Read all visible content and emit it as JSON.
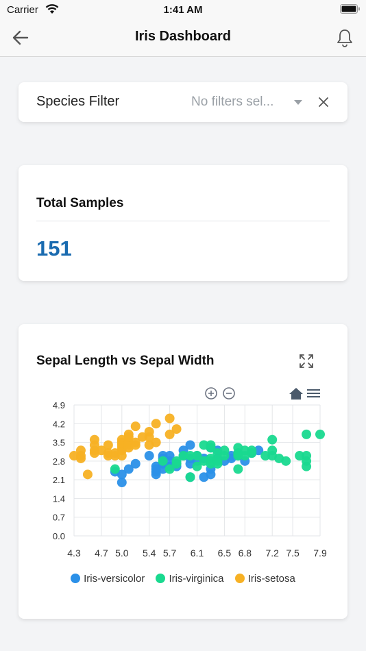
{
  "status_bar": {
    "carrier": "Carrier",
    "time": "1:41 AM"
  },
  "nav": {
    "title": "Iris Dashboard",
    "back_icon": "arrow-left-icon",
    "bell_icon": "bell-icon"
  },
  "filter": {
    "label": "Species Filter",
    "placeholder": "No filters sel...",
    "caret_icon": "caret-down-icon",
    "clear_icon": "close-icon"
  },
  "samples": {
    "title": "Total Samples",
    "value": "151"
  },
  "chart_card": {
    "title": "Sepal Length vs Sepal Width"
  },
  "colors": {
    "versicolor": "#2b90e8",
    "virginica": "#19d98f",
    "setosa": "#f7b124",
    "accent": "#1a6bb0"
  },
  "chart_data": {
    "type": "scatter",
    "title": "Sepal Length vs Sepal Width",
    "xlabel": "",
    "ylabel": "",
    "xlim": [
      4.3,
      7.9
    ],
    "ylim": [
      0.0,
      4.9
    ],
    "x_ticks": [
      "4.3",
      "4.7",
      "5.0",
      "5.4",
      "5.7",
      "6.1",
      "6.5",
      "6.8",
      "7.2",
      "7.5",
      "7.9"
    ],
    "y_ticks": [
      "0.0",
      "0.7",
      "1.4",
      "2.1",
      "2.8",
      "3.5",
      "4.2",
      "4.9"
    ],
    "grid": true,
    "legend_position": "bottom",
    "series": [
      {
        "name": "Iris-versicolor",
        "color": "#2b90e8",
        "points": [
          [
            4.9,
            2.4
          ],
          [
            5.0,
            2.0
          ],
          [
            5.0,
            2.3
          ],
          [
            5.1,
            2.5
          ],
          [
            5.2,
            2.7
          ],
          [
            5.4,
            3.0
          ],
          [
            5.5,
            2.3
          ],
          [
            5.5,
            2.4
          ],
          [
            5.5,
            2.5
          ],
          [
            5.5,
            2.6
          ],
          [
            5.6,
            2.5
          ],
          [
            5.6,
            2.7
          ],
          [
            5.6,
            2.9
          ],
          [
            5.6,
            3.0
          ],
          [
            5.7,
            2.6
          ],
          [
            5.7,
            2.8
          ],
          [
            5.7,
            3.0
          ],
          [
            5.8,
            2.6
          ],
          [
            5.8,
            2.7
          ],
          [
            5.9,
            3.0
          ],
          [
            5.9,
            3.2
          ],
          [
            6.0,
            2.2
          ],
          [
            6.0,
            2.7
          ],
          [
            6.0,
            2.9
          ],
          [
            6.0,
            3.4
          ],
          [
            6.1,
            2.8
          ],
          [
            6.1,
            3.0
          ],
          [
            6.2,
            2.2
          ],
          [
            6.2,
            2.9
          ],
          [
            6.3,
            2.3
          ],
          [
            6.3,
            2.5
          ],
          [
            6.3,
            3.3
          ],
          [
            6.4,
            2.9
          ],
          [
            6.4,
            3.2
          ],
          [
            6.5,
            2.8
          ],
          [
            6.6,
            2.9
          ],
          [
            6.6,
            3.0
          ],
          [
            6.7,
            3.0
          ],
          [
            6.7,
            3.1
          ],
          [
            6.8,
            2.8
          ],
          [
            6.9,
            3.1
          ],
          [
            7.0,
            3.2
          ]
        ]
      },
      {
        "name": "Iris-virginica",
        "color": "#19d98f",
        "points": [
          [
            4.9,
            2.5
          ],
          [
            5.6,
            2.8
          ],
          [
            5.7,
            2.5
          ],
          [
            5.8,
            2.7
          ],
          [
            5.8,
            2.8
          ],
          [
            5.9,
            3.0
          ],
          [
            6.0,
            2.2
          ],
          [
            6.0,
            3.0
          ],
          [
            6.1,
            2.6
          ],
          [
            6.1,
            3.0
          ],
          [
            6.2,
            2.8
          ],
          [
            6.2,
            3.4
          ],
          [
            6.3,
            2.7
          ],
          [
            6.3,
            2.8
          ],
          [
            6.3,
            2.9
          ],
          [
            6.3,
            3.3
          ],
          [
            6.3,
            3.4
          ],
          [
            6.4,
            2.7
          ],
          [
            6.4,
            2.8
          ],
          [
            6.4,
            3.1
          ],
          [
            6.5,
            3.0
          ],
          [
            6.5,
            3.2
          ],
          [
            6.7,
            2.5
          ],
          [
            6.7,
            3.0
          ],
          [
            6.7,
            3.1
          ],
          [
            6.7,
            3.3
          ],
          [
            6.8,
            3.0
          ],
          [
            6.8,
            3.2
          ],
          [
            6.9,
            3.1
          ],
          [
            6.9,
            3.2
          ],
          [
            7.1,
            3.0
          ],
          [
            7.2,
            3.0
          ],
          [
            7.2,
            3.2
          ],
          [
            7.2,
            3.6
          ],
          [
            7.3,
            2.9
          ],
          [
            7.4,
            2.8
          ],
          [
            7.6,
            3.0
          ],
          [
            7.7,
            2.6
          ],
          [
            7.7,
            2.8
          ],
          [
            7.7,
            3.0
          ],
          [
            7.7,
            3.8
          ],
          [
            7.9,
            3.8
          ]
        ]
      },
      {
        "name": "Iris-setosa",
        "color": "#f7b124",
        "points": [
          [
            4.3,
            3.0
          ],
          [
            4.4,
            2.9
          ],
          [
            4.4,
            3.0
          ],
          [
            4.4,
            3.2
          ],
          [
            4.5,
            2.3
          ],
          [
            4.6,
            3.1
          ],
          [
            4.6,
            3.2
          ],
          [
            4.6,
            3.4
          ],
          [
            4.6,
            3.6
          ],
          [
            4.7,
            3.2
          ],
          [
            4.8,
            3.0
          ],
          [
            4.8,
            3.1
          ],
          [
            4.8,
            3.4
          ],
          [
            4.9,
            3.0
          ],
          [
            4.9,
            3.1
          ],
          [
            5.0,
            3.0
          ],
          [
            5.0,
            3.2
          ],
          [
            5.0,
            3.3
          ],
          [
            5.0,
            3.4
          ],
          [
            5.0,
            3.5
          ],
          [
            5.0,
            3.6
          ],
          [
            5.1,
            3.3
          ],
          [
            5.1,
            3.4
          ],
          [
            5.1,
            3.5
          ],
          [
            5.1,
            3.7
          ],
          [
            5.1,
            3.8
          ],
          [
            5.2,
            3.4
          ],
          [
            5.2,
            3.5
          ],
          [
            5.2,
            4.1
          ],
          [
            5.3,
            3.7
          ],
          [
            5.4,
            3.4
          ],
          [
            5.4,
            3.7
          ],
          [
            5.4,
            3.9
          ],
          [
            5.5,
            3.5
          ],
          [
            5.5,
            4.2
          ],
          [
            5.7,
            3.8
          ],
          [
            5.7,
            4.4
          ],
          [
            5.8,
            4.0
          ]
        ]
      }
    ]
  }
}
